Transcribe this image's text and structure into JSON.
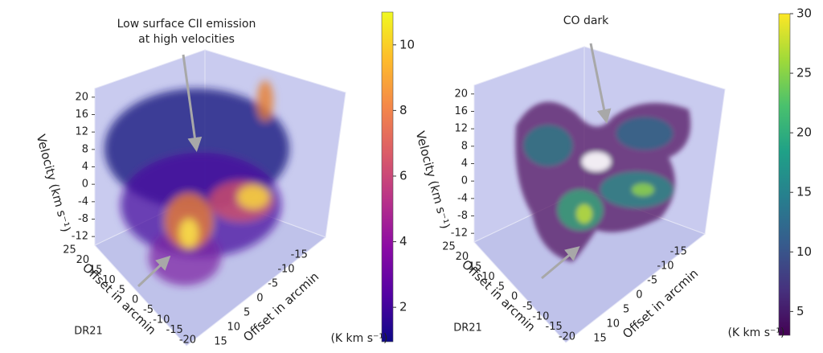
{
  "chart_data": [
    {
      "type": "volume",
      "annotation": [
        "Low surface CII emission",
        "at high velocities"
      ],
      "region_label": "DR21",
      "zlabel": "Velocity (km s⁻¹)",
      "xlabel": "Offset in arcmin",
      "ylabel": "Offset in arcmin",
      "zlim": [
        -14,
        22
      ],
      "zticks": [
        -12,
        -8,
        -4,
        0,
        4,
        8,
        12,
        16,
        20
      ],
      "xlim": [
        27,
        -22
      ],
      "xticks": [
        25,
        20,
        15,
        10,
        5,
        0,
        -5,
        -10,
        -15,
        -20
      ],
      "ylim": [
        17,
        -18
      ],
      "yticks": [
        15,
        10,
        5,
        0,
        -5,
        -10,
        -15
      ],
      "colorbar": {
        "label": "(K km s⁻¹)",
        "clim": [
          0.95,
          11
        ],
        "ticks": [
          2,
          4,
          6,
          8,
          10
        ],
        "colormap": "plasma"
      }
    },
    {
      "type": "volume",
      "annotation": [
        "CO dark"
      ],
      "region_label": "DR21",
      "zlabel": "Velocity (km s⁻¹)",
      "xlabel": "Offset in arcmin",
      "ylabel": "Offset in arcmin",
      "zlim": [
        -14,
        22
      ],
      "zticks": [
        -12,
        -8,
        -4,
        0,
        4,
        8,
        12,
        16,
        20
      ],
      "xlim": [
        27,
        -22
      ],
      "xticks": [
        25,
        20,
        15,
        10,
        5,
        0,
        -5,
        -10,
        -15,
        -20
      ],
      "ylim": [
        17,
        -18
      ],
      "yticks": [
        15,
        10,
        5,
        0,
        -5,
        -10,
        -15
      ],
      "colorbar": {
        "label": "(K km s⁻¹)",
        "clim": [
          3,
          30
        ],
        "ticks": [
          5,
          10,
          15,
          20,
          25,
          30
        ],
        "colormap": "viridis"
      }
    }
  ]
}
